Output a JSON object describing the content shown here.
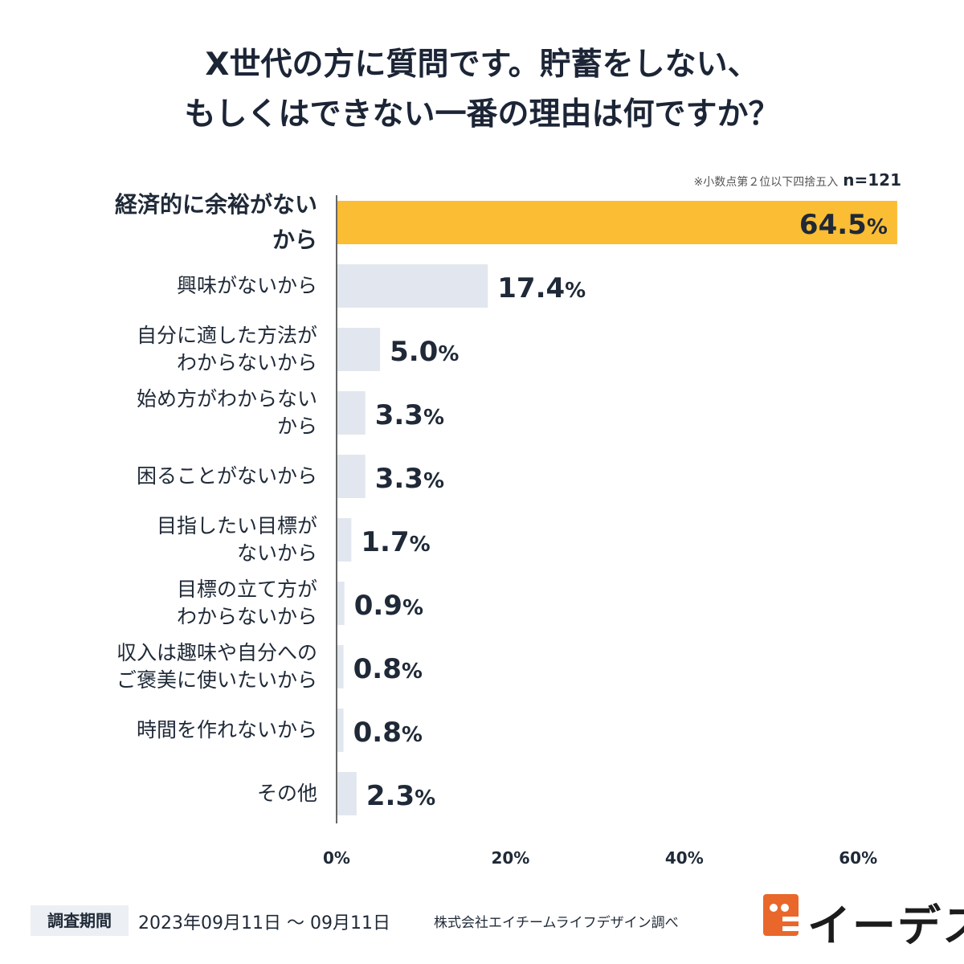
{
  "title": {
    "line1": "X世代の方に質問です。貯蓄をしない、",
    "line2": "もしくはできない一番の理由は何ですか？"
  },
  "note": {
    "rounding": "※小数点第２位以下四捨五入",
    "n": "n=121"
  },
  "chart_data": {
    "type": "bar",
    "orientation": "horizontal",
    "title": "X世代の方に質問です。貯蓄をしない、もしくはできない一番の理由は何ですか？",
    "categories": [
      [
        "経済的に余裕がない",
        "から"
      ],
      [
        "興味がないから"
      ],
      [
        "自分に適した方法が",
        "わからないから"
      ],
      [
        "始め方がわからない",
        "から"
      ],
      [
        "困ることがないから"
      ],
      [
        "目指したい目標が",
        "ないから"
      ],
      [
        "目標の立て方が",
        "わからないから"
      ],
      [
        "収入は趣味や自分への",
        "ご褒美に使いたいから"
      ],
      [
        "時間を作れないから"
      ],
      [
        "その他"
      ]
    ],
    "values": [
      64.5,
      17.4,
      5.0,
      3.3,
      3.3,
      1.7,
      0.9,
      0.8,
      0.8,
      2.3
    ],
    "value_labels": [
      "64.5",
      "17.4",
      "5.0",
      "3.3",
      "3.3",
      "1.7",
      "0.9",
      "0.8",
      "0.8",
      "2.3"
    ],
    "unit": "%",
    "xlim": [
      0,
      65
    ],
    "xticks": [
      0,
      20,
      40,
      60
    ],
    "xtick_labels": [
      "0%",
      "20%",
      "40%",
      "60%"
    ],
    "highlight_index": 0,
    "colors": {
      "highlight": "#fbbd33",
      "bar": "#e2e7ef",
      "axis": "#666666",
      "text": "#1f2937"
    }
  },
  "footer": {
    "period_label": "調査期間",
    "period": "2023年09月11日 〜 09月11日",
    "credit": "株式会社エイチームライフデザイン調べ"
  },
  "logo": {
    "text": "イーデス",
    "icon": "idesu-mascot-icon"
  }
}
